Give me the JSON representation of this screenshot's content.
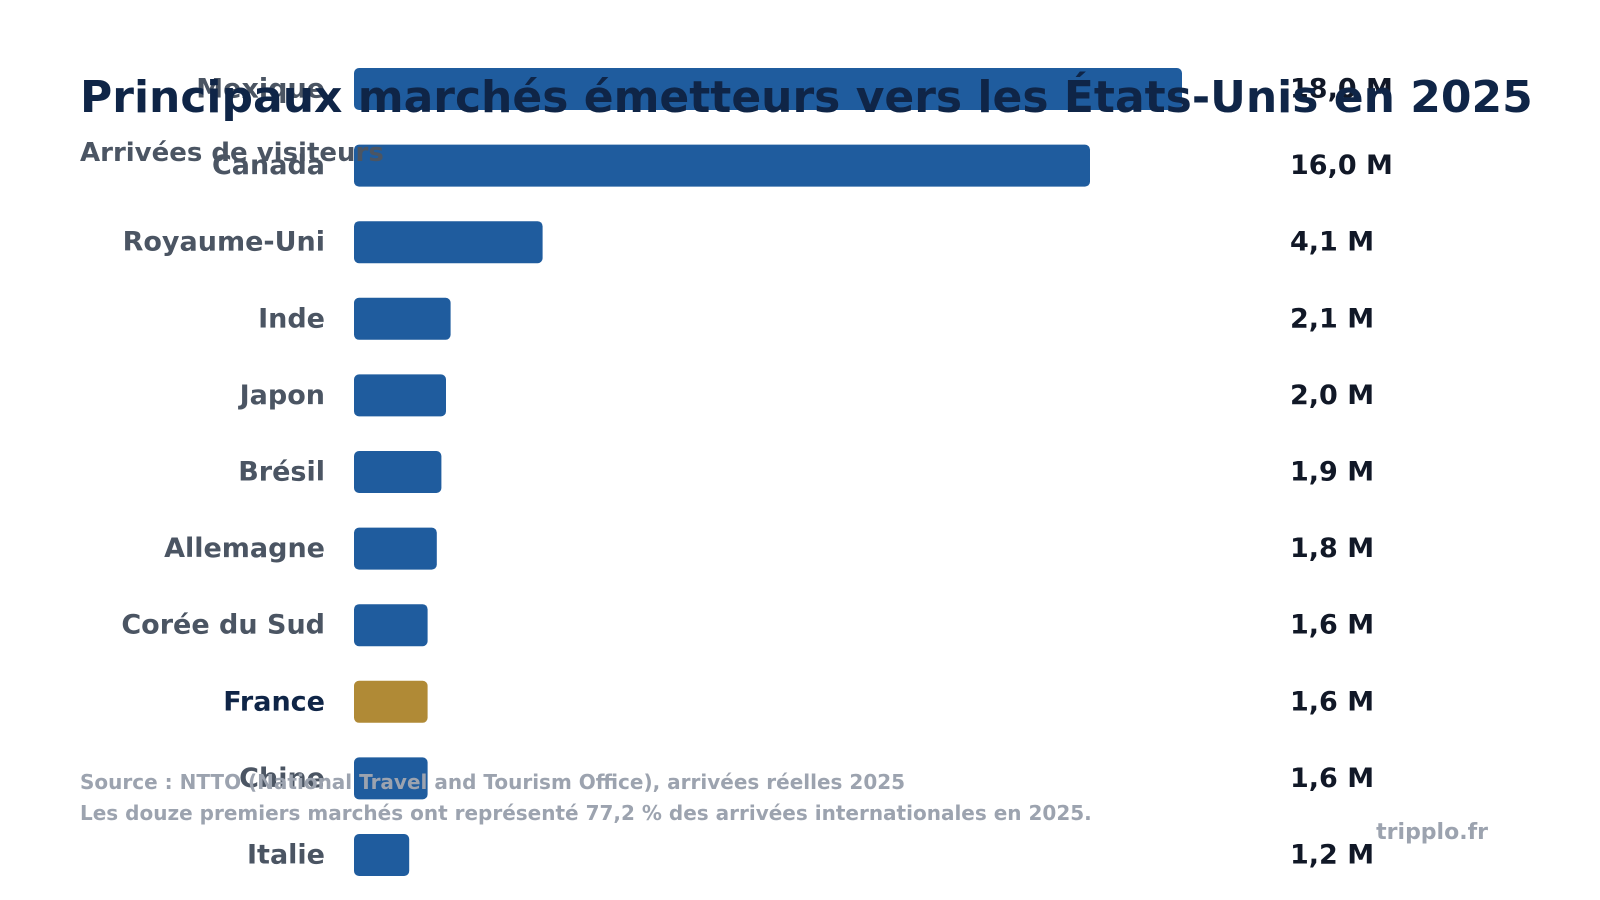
{
  "colors": {
    "bar_default": "#1f5c9e",
    "bar_highlight": "#b08a36",
    "title": "#0f2547",
    "label": "#4b5563",
    "label_highlight": "#0f2547",
    "value": "#111827",
    "footer": "#9ca3af"
  },
  "chart_data": {
    "type": "bar",
    "orientation": "horizontal",
    "title": "Principaux marchés émetteurs vers les États-Unis en 2025",
    "subtitle": "Arrivées de visiteurs",
    "categories": [
      "Mexique",
      "Canada",
      "Royaume-Uni",
      "Inde",
      "Japon",
      "Brésil",
      "Allemagne",
      "Corée du Sud",
      "France",
      "Chine",
      "Italie"
    ],
    "values": [
      18.0,
      16.0,
      4.1,
      2.1,
      2.0,
      1.9,
      1.8,
      1.6,
      1.6,
      1.6,
      1.2
    ],
    "value_labels": [
      "18,0 M",
      "16,0 M",
      "4,1 M",
      "2,1 M",
      "2,0 M",
      "1,9 M",
      "1,8 M",
      "1,6 M",
      "1,6 M",
      "1,6 M",
      "1,2 M"
    ],
    "highlight": "France",
    "xlim": [
      0,
      20
    ],
    "grid": false,
    "legend": "none"
  },
  "footer": {
    "source": "Source : NTTO (National Travel and Tourism Office), arrivées réelles 2025",
    "note": "Les douze premiers marchés ont représenté 77,2 % des arrivées internationales en 2025.",
    "brand": "tripplo.fr"
  }
}
